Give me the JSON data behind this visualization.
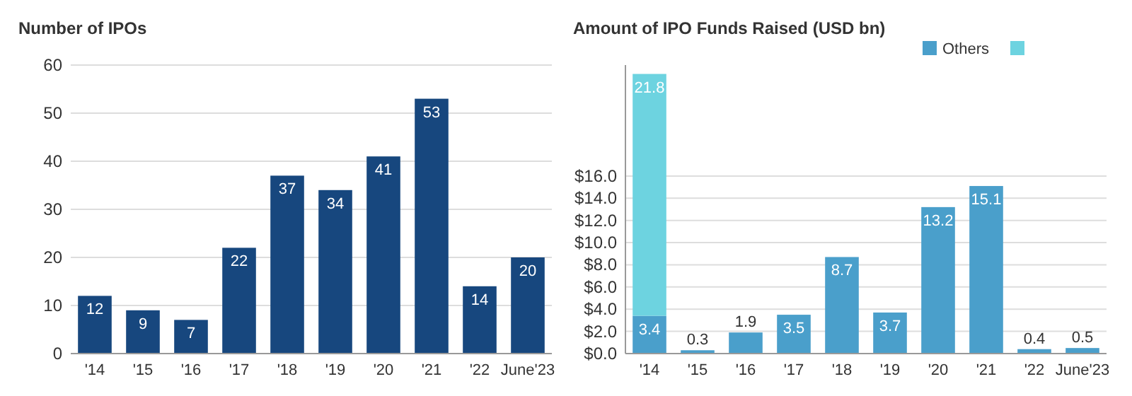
{
  "chart_data": [
    {
      "type": "bar",
      "title": "Number of IPOs",
      "categories": [
        "'14",
        "'15",
        "'16",
        "'17",
        "'18",
        "'19",
        "'20",
        "'21",
        "'22",
        "June'23"
      ],
      "series": [
        {
          "color": "#17477e",
          "values": [
            12,
            9,
            7,
            22,
            37,
            34,
            41,
            53,
            14,
            20
          ]
        }
      ],
      "ylim": [
        0,
        60
      ],
      "yticks": [
        0,
        10,
        20,
        30,
        40,
        50,
        60
      ],
      "grid": "y",
      "data_labels": true,
      "legend": false
    },
    {
      "type": "bar",
      "title": "Amount of IPO Funds Raised (USD bn)",
      "categories": [
        "'14",
        "'15",
        "'16",
        "'17",
        "'18",
        "'19",
        "'20",
        "'21",
        "'22",
        "June'23"
      ],
      "stacked": true,
      "series": [
        {
          "name": "Others",
          "color": "#4a9fcb",
          "values": [
            3.4,
            0.3,
            1.9,
            3.5,
            8.7,
            3.7,
            13.2,
            15.1,
            0.4,
            0.5
          ]
        },
        {
          "color": "#6dd3e0",
          "values": [
            21.8,
            null,
            null,
            null,
            null,
            null,
            null,
            null,
            null,
            null
          ]
        }
      ],
      "ylim": [
        0,
        26
      ],
      "yticks": [
        {
          "value": 0,
          "label": "$0.0"
        },
        {
          "value": 2,
          "label": "$2.0"
        },
        {
          "value": 4,
          "label": "$4.0"
        },
        {
          "value": 6,
          "label": "$6.0"
        },
        {
          "value": 8,
          "label": "$8.0"
        },
        {
          "value": 10,
          "label": "$10.0"
        },
        {
          "value": 12,
          "label": "$12.0"
        },
        {
          "value": 14,
          "label": "$14.0"
        },
        {
          "value": 16,
          "label": "$16.0"
        }
      ],
      "grid": "y",
      "data_labels": true,
      "legend": "top right"
    }
  ]
}
